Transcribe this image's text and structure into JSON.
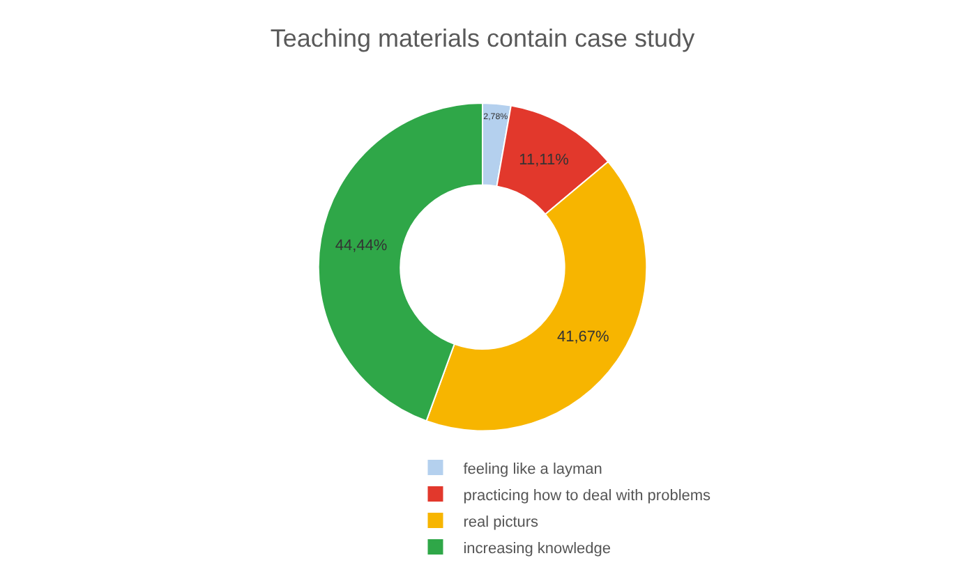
{
  "chart_data": {
    "type": "donut",
    "title": "Teaching materials contain case study",
    "categories": [
      "feeling like a layman",
      "practicing how to deal with problems",
      "real picturs",
      "increasing knowledge"
    ],
    "values": [
      2.78,
      11.11,
      41.67,
      44.44
    ],
    "value_labels": [
      "2,78%",
      "11,11%",
      "41,67%",
      "44,44%"
    ],
    "colors": [
      "#b4d0ee",
      "#e2382c",
      "#f7b500",
      "#2fa748"
    ],
    "legend": "bottom"
  }
}
